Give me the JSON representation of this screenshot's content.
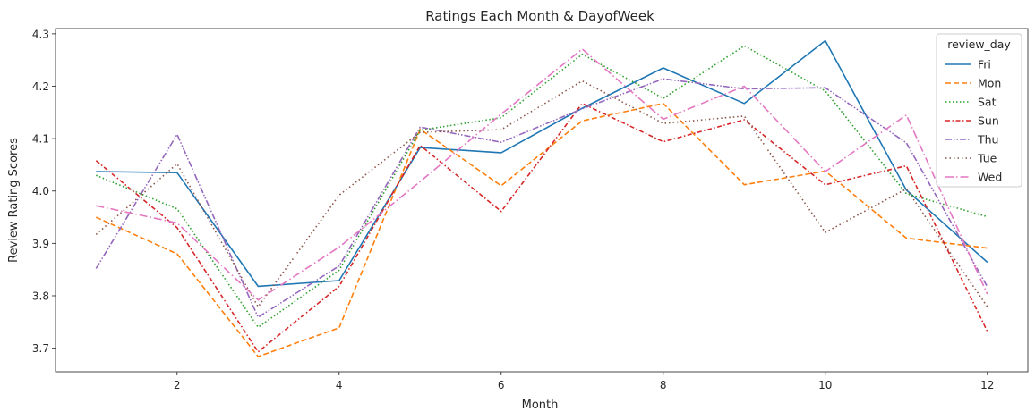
{
  "chart_data": {
    "type": "line",
    "title": "Ratings Each Month & DayofWeek",
    "xlabel": "Month",
    "ylabel": "Review Rating Scores",
    "x": [
      1,
      2,
      3,
      4,
      5,
      6,
      7,
      8,
      9,
      10,
      11,
      12
    ],
    "xlim": [
      0.5,
      12.5
    ],
    "ylim": [
      3.655,
      4.31
    ],
    "xticks": [
      2,
      4,
      6,
      8,
      10,
      12
    ],
    "yticks": [
      3.7,
      3.8,
      3.9,
      4.0,
      4.1,
      4.2,
      4.3
    ],
    "grid": false,
    "legend": {
      "title": "review_day",
      "placement": "top-right"
    },
    "series": [
      {
        "name": "Fri",
        "color": "#1f77b4",
        "dash": "solid",
        "values": [
          4.037,
          4.035,
          3.818,
          3.829,
          4.083,
          4.073,
          4.158,
          4.235,
          4.167,
          4.287,
          4.002,
          3.864
        ]
      },
      {
        "name": "Mon",
        "color": "#ff7f0e",
        "dash": "dashed",
        "values": [
          3.95,
          3.88,
          3.684,
          3.739,
          4.118,
          4.01,
          4.134,
          4.167,
          4.012,
          4.038,
          3.91,
          3.891
        ]
      },
      {
        "name": "Sat",
        "color": "#2ca02c",
        "dash": "dotted",
        "values": [
          4.03,
          3.966,
          3.74,
          3.849,
          4.116,
          4.14,
          4.261,
          4.177,
          4.277,
          4.191,
          3.995,
          3.951
        ]
      },
      {
        "name": "Sun",
        "color": "#d62728",
        "dash": "dashdot",
        "values": [
          4.058,
          3.93,
          3.693,
          3.818,
          4.087,
          3.961,
          4.167,
          4.094,
          4.136,
          4.012,
          4.048,
          3.732
        ]
      },
      {
        "name": "Thu",
        "color": "#9467bd",
        "dash": "dashdotdot",
        "values": [
          3.852,
          4.108,
          3.759,
          3.857,
          4.122,
          4.093,
          4.157,
          4.214,
          4.195,
          4.197,
          4.092,
          3.817
        ]
      },
      {
        "name": "Tue",
        "color": "#8c564b",
        "dash": "finedot",
        "values": [
          3.917,
          4.052,
          3.779,
          3.992,
          4.112,
          4.117,
          4.21,
          4.129,
          4.143,
          3.921,
          4.004,
          3.779
        ]
      },
      {
        "name": "Wed",
        "color": "#e377c2",
        "dash": "longdashdot",
        "values": [
          3.972,
          3.939,
          3.792,
          3.893,
          4.018,
          4.147,
          4.271,
          4.137,
          4.2,
          4.037,
          4.145,
          3.803
        ]
      }
    ]
  }
}
